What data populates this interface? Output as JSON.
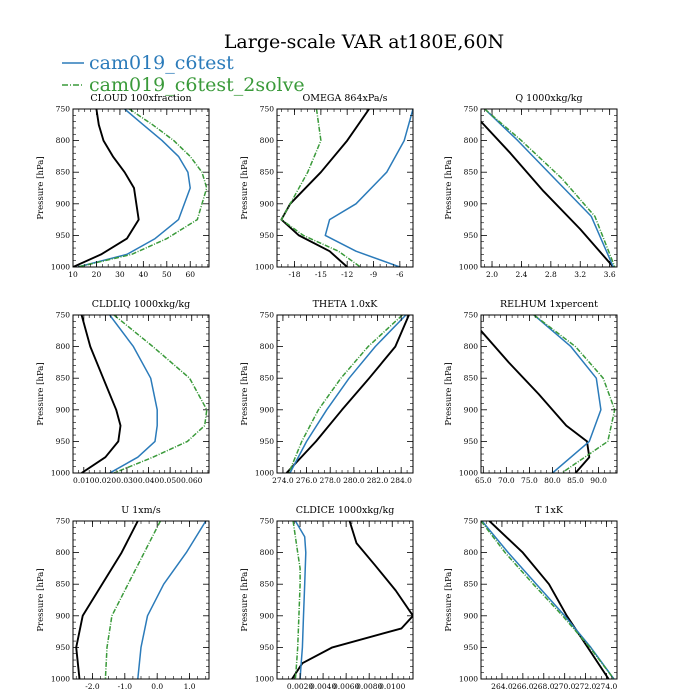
{
  "figure_title": "Large-scale VAR at180E,60N",
  "legend": [
    {
      "label": "cam019_c6test",
      "color": "#2b7bba"
    },
    {
      "label": "cam019_c6test_2solve",
      "color": "#3a9a3a"
    }
  ],
  "reference_color": "#000000",
  "chart_data": [
    {
      "type": "line",
      "title": "CLOUD  100xfraction",
      "ylabel": "Pressure [hPa]",
      "ylim": [
        1000,
        750
      ],
      "yticks": [
        750,
        800,
        850,
        900,
        950,
        1000
      ],
      "xlim": [
        10,
        68
      ],
      "xticks": [
        10,
        20,
        30,
        40,
        50,
        60
      ],
      "xtick_labels": [
        "10",
        "20",
        "30",
        "40",
        "50",
        "60"
      ],
      "series": [
        {
          "name": "reference",
          "x": [
            20,
            21,
            23,
            27,
            32,
            36,
            38,
            33,
            22,
            10
          ],
          "y": [
            750,
            775,
            800,
            825,
            850,
            875,
            925,
            955,
            980,
            1000
          ]
        },
        {
          "name": "cam019_c6test",
          "x": [
            32,
            40,
            48,
            55,
            59,
            60,
            55,
            45,
            33,
            12
          ],
          "y": [
            750,
            775,
            800,
            825,
            850,
            875,
            925,
            955,
            980,
            1000
          ]
        },
        {
          "name": "cam019_c6test_2solve",
          "x": [
            34,
            44,
            53,
            60,
            65,
            67,
            63,
            50,
            35,
            12
          ],
          "y": [
            750,
            775,
            800,
            825,
            850,
            875,
            925,
            955,
            980,
            1000
          ]
        }
      ]
    },
    {
      "type": "line",
      "title": "OMEGA  864xPa/s",
      "ylabel": "Pressure [hPa]",
      "ylim": [
        1000,
        750
      ],
      "yticks": [
        750,
        800,
        850,
        900,
        950,
        1000
      ],
      "xlim": [
        -20,
        -4.5
      ],
      "xticks": [
        -18,
        -15,
        -12,
        -9,
        -6
      ],
      "xtick_labels": [
        "-18",
        "-15",
        "-12",
        "-9",
        "-6"
      ],
      "series": [
        {
          "name": "reference",
          "x": [
            -9.5,
            -12,
            -15,
            -18.5,
            -19.5,
            -17.5,
            -14,
            -12
          ],
          "y": [
            750,
            800,
            850,
            900,
            925,
            950,
            975,
            1000
          ]
        },
        {
          "name": "cam019_c6test",
          "x": [
            -4.5,
            -5.5,
            -7.5,
            -11,
            -14,
            -14.5,
            -11,
            -6
          ],
          "y": [
            750,
            800,
            850,
            900,
            925,
            950,
            975,
            1000
          ]
        },
        {
          "name": "cam019_c6test_2solve",
          "x": [
            -15.5,
            -15,
            -16.5,
            -18.5,
            -19.5,
            -17,
            -13,
            -10.5
          ],
          "y": [
            750,
            800,
            850,
            900,
            925,
            950,
            975,
            1000
          ]
        }
      ]
    },
    {
      "type": "line",
      "title": "Q  1000xkg/kg",
      "ylabel": "Pressure [hPa]",
      "ylim": [
        1000,
        750
      ],
      "yticks": [
        750,
        800,
        850,
        900,
        950,
        1000
      ],
      "xlim": [
        1.85,
        3.7
      ],
      "xticks": [
        2.0,
        2.4,
        2.8,
        3.2,
        3.6
      ],
      "xtick_labels": [
        "2.0",
        "2.4",
        "2.8",
        "3.2",
        "3.6"
      ],
      "series": [
        {
          "name": "reference",
          "x": [
            1.85,
            2.25,
            2.7,
            3.2,
            3.65
          ],
          "y": [
            770,
            820,
            880,
            940,
            1000
          ]
        },
        {
          "name": "cam019_c6test",
          "x": [
            1.9,
            2.35,
            2.85,
            3.35,
            3.65
          ],
          "y": [
            750,
            800,
            860,
            920,
            1000
          ]
        },
        {
          "name": "cam019_c6test_2solve",
          "x": [
            1.9,
            2.4,
            2.95,
            3.4,
            3.67
          ],
          "y": [
            750,
            800,
            860,
            920,
            1000
          ]
        }
      ]
    },
    {
      "type": "line",
      "title": "CLDLIQ  1000xkg/kg",
      "ylabel": "Pressure [hPa]",
      "ylim": [
        1000,
        750
      ],
      "yticks": [
        750,
        800,
        850,
        900,
        950,
        1000
      ],
      "xlim": [
        0.005,
        0.068
      ],
      "xticks": [
        0.01,
        0.02,
        0.03,
        0.04,
        0.05,
        0.06
      ],
      "xtick_labels": [
        "0.010",
        "0.020",
        "0.030",
        "0.040",
        "0.050",
        "0.060"
      ],
      "series": [
        {
          "name": "reference",
          "x": [
            0.009,
            0.013,
            0.019,
            0.025,
            0.027,
            0.026,
            0.02,
            0.009
          ],
          "y": [
            750,
            800,
            850,
            900,
            925,
            950,
            975,
            1000
          ]
        },
        {
          "name": "cam019_c6test",
          "x": [
            0.022,
            0.033,
            0.041,
            0.044,
            0.044,
            0.043,
            0.035,
            0.022
          ],
          "y": [
            750,
            800,
            850,
            900,
            925,
            950,
            975,
            1000
          ]
        },
        {
          "name": "cam019_c6test_2solve",
          "x": [
            0.024,
            0.042,
            0.059,
            0.067,
            0.066,
            0.058,
            0.042,
            0.024
          ],
          "y": [
            750,
            800,
            850,
            900,
            925,
            950,
            975,
            1000
          ]
        }
      ]
    },
    {
      "type": "line",
      "title": "THETA  1.0xK",
      "ylabel": "Pressure [hPa]",
      "ylim": [
        1000,
        750
      ],
      "yticks": [
        750,
        800,
        850,
        900,
        950,
        1000
      ],
      "xlim": [
        273.5,
        285
      ],
      "xticks": [
        274,
        276,
        278,
        280,
        282,
        284
      ],
      "xtick_labels": [
        "274.0",
        "276.0",
        "278.0",
        "280.0",
        "282.0",
        "284.0"
      ],
      "series": [
        {
          "name": "reference",
          "x": [
            285,
            283.5,
            281.3,
            279,
            276.8,
            274.3
          ],
          "y": [
            735,
            800,
            850,
            900,
            950,
            1000
          ]
        },
        {
          "name": "cam019_c6test",
          "x": [
            284.4,
            281.8,
            279.6,
            277.7,
            276,
            274.6
          ],
          "y": [
            750,
            800,
            850,
            900,
            950,
            1000
          ]
        },
        {
          "name": "cam019_c6test_2solve",
          "x": [
            284.1,
            281.2,
            278.9,
            277,
            275.6,
            274.5
          ],
          "y": [
            750,
            800,
            850,
            900,
            950,
            1000
          ]
        }
      ]
    },
    {
      "type": "line",
      "title": "RELHUM  1xpercent",
      "ylabel": "Pressure [hPa]",
      "ylim": [
        1000,
        750
      ],
      "yticks": [
        750,
        800,
        850,
        900,
        950,
        1000
      ],
      "xlim": [
        64.5,
        94
      ],
      "xticks": [
        65,
        70,
        75,
        80,
        85,
        90
      ],
      "xtick_labels": [
        "65.0",
        "70.0",
        "75.0",
        "80.0",
        "85.0",
        "90.0"
      ],
      "series": [
        {
          "name": "reference",
          "x": [
            64.5,
            70.5,
            77,
            83,
            87.5,
            88,
            85
          ],
          "y": [
            775,
            825,
            875,
            925,
            950,
            975,
            1000
          ]
        },
        {
          "name": "cam019_c6test",
          "x": [
            76,
            84,
            89.5,
            90.5,
            88,
            80
          ],
          "y": [
            750,
            800,
            850,
            900,
            950,
            1000
          ]
        },
        {
          "name": "cam019_c6test_2solve",
          "x": [
            76,
            85,
            91,
            93.5,
            92,
            82
          ],
          "y": [
            750,
            800,
            850,
            900,
            950,
            1000
          ]
        }
      ]
    },
    {
      "type": "line",
      "title": "U  1xm/s",
      "ylabel": "Pressure [hPa]",
      "ylim": [
        1000,
        750
      ],
      "yticks": [
        750,
        800,
        850,
        900,
        950,
        1000
      ],
      "xlim": [
        -2.6,
        1.6
      ],
      "xticks": [
        -2,
        -1,
        0,
        1
      ],
      "xtick_labels": [
        "-2.0",
        "-1.0",
        "0.0",
        "1.0"
      ],
      "series": [
        {
          "name": "reference",
          "x": [
            -0.6,
            -1.1,
            -1.7,
            -2.3,
            -2.5,
            -2.4
          ],
          "y": [
            750,
            800,
            850,
            900,
            950,
            1000
          ]
        },
        {
          "name": "cam019_c6test",
          "x": [
            1.5,
            0.9,
            0.2,
            -0.3,
            -0.5,
            -0.6
          ],
          "y": [
            750,
            800,
            850,
            900,
            950,
            1000
          ]
        },
        {
          "name": "cam019_c6test_2solve",
          "x": [
            0.1,
            -0.4,
            -0.9,
            -1.4,
            -1.55,
            -1.6
          ],
          "y": [
            750,
            800,
            850,
            900,
            950,
            1000
          ]
        }
      ]
    },
    {
      "type": "line",
      "title": "CLDICE  1000xkg/kg",
      "ylabel": "Pressure [hPa]",
      "ylim": [
        1000,
        750
      ],
      "yticks": [
        750,
        800,
        850,
        900,
        950,
        1000
      ],
      "xlim": [
        0,
        0.0118
      ],
      "xticks": [
        0.002,
        0.004,
        0.006,
        0.008,
        0.01
      ],
      "xtick_labels": [
        "0.0020",
        "0.0040",
        "0.0060",
        "0.0080",
        "0.0100"
      ],
      "series": [
        {
          "name": "reference",
          "x": [
            0.0063,
            0.0069,
            0.0085,
            0.0103,
            0.0118,
            0.0108,
            0.0048,
            0.0022,
            0.0013
          ],
          "y": [
            750,
            785,
            820,
            860,
            900,
            920,
            950,
            975,
            1000
          ]
        },
        {
          "name": "cam019_c6test",
          "x": [
            0.0016,
            0.0024,
            0.0025,
            0.0024,
            0.0023,
            0.0022,
            0.0021,
            0.002
          ],
          "y": [
            750,
            775,
            800,
            850,
            900,
            950,
            975,
            1000
          ]
        },
        {
          "name": "cam019_c6test_2solve",
          "x": [
            0.0014,
            0.0018,
            0.002,
            0.002,
            0.0019,
            0.0018,
            0.0017,
            0.0016
          ],
          "y": [
            750,
            800,
            825,
            850,
            900,
            950,
            975,
            1000
          ]
        }
      ]
    },
    {
      "type": "line",
      "title": "T  1xK",
      "ylabel": "Pressure [hPa]",
      "ylim": [
        1000,
        750
      ],
      "yticks": [
        750,
        800,
        850,
        900,
        950,
        1000
      ],
      "xlim": [
        262,
        275
      ],
      "xticks": [
        264,
        266,
        268,
        270,
        272,
        274
      ],
      "xtick_labels": [
        "264.0",
        "266.0",
        "268.0",
        "270.0",
        "272.0",
        "274.0"
      ],
      "series": [
        {
          "name": "reference",
          "x": [
            262.8,
            266,
            268.5,
            270.2,
            272.2,
            274.2
          ],
          "y": [
            750,
            800,
            850,
            900,
            950,
            1000
          ]
        },
        {
          "name": "cam019_c6test",
          "x": [
            262.1,
            264.6,
            267.3,
            270,
            272.5,
            274.7
          ],
          "y": [
            750,
            800,
            850,
            900,
            950,
            1000
          ]
        },
        {
          "name": "cam019_c6test_2solve",
          "x": [
            262,
            264.3,
            267,
            269.8,
            272.4,
            274.7
          ],
          "y": [
            750,
            800,
            850,
            900,
            950,
            1000
          ]
        }
      ]
    }
  ]
}
